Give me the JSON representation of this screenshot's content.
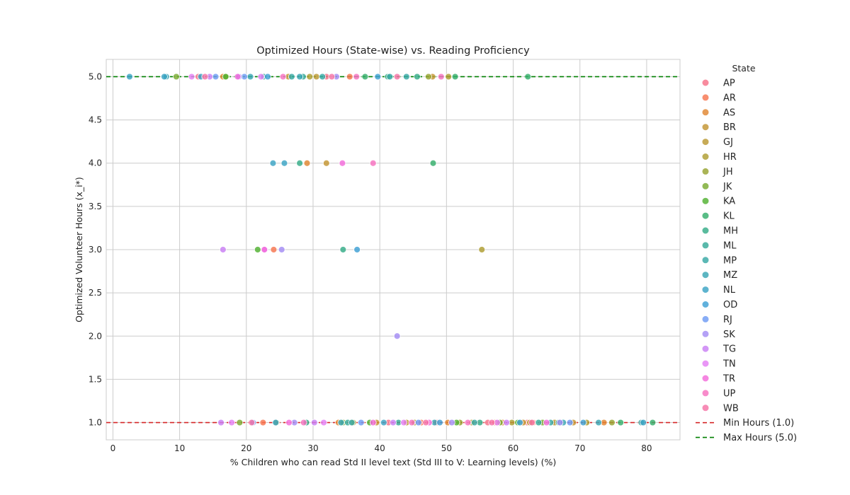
{
  "chart_data": {
    "type": "scatter",
    "title": "Optimized Hours (State-wise) vs. Reading Proficiency",
    "xlabel": "% Children who can read Std II level text (Std III to V: Learning levels) (%)",
    "ylabel": "Optimized Volunteer Hours (x_i*)",
    "xlim": [
      -1,
      85
    ],
    "ylim": [
      0.8,
      5.2
    ],
    "xticks": [
      "0",
      "10",
      "20",
      "30",
      "40",
      "50",
      "60",
      "70",
      "80"
    ],
    "yticks": [
      "1.0",
      "1.5",
      "2.0",
      "2.5",
      "3.0",
      "3.5",
      "4.0",
      "4.5",
      "5.0"
    ],
    "grid": true,
    "legend": {
      "title": "State",
      "position": "outside-right"
    },
    "series": [
      {
        "name": "AP",
        "color": "#f77189",
        "points": [
          [
            32.0,
            5
          ],
          [
            12.8,
            5
          ],
          [
            48.5,
            1
          ],
          [
            56.2,
            1
          ],
          [
            62.1,
            1
          ],
          [
            41.3,
            1
          ]
        ]
      },
      {
        "name": "AR",
        "color": "#f7754f",
        "points": [
          [
            24.1,
            3
          ],
          [
            35.5,
            5
          ],
          [
            22.5,
            1
          ],
          [
            57.3,
            1
          ],
          [
            63.0,
            1
          ],
          [
            46.2,
            1
          ]
        ]
      },
      {
        "name": "AS",
        "color": "#e18631",
        "points": [
          [
            29.1,
            4
          ],
          [
            16.5,
            5
          ],
          [
            33.8,
            1
          ],
          [
            50.2,
            1
          ],
          [
            58.4,
            1
          ],
          [
            73.6,
            1
          ]
        ]
      },
      {
        "name": "BR",
        "color": "#c39532",
        "points": [
          [
            32.0,
            4
          ],
          [
            26.3,
            5
          ],
          [
            47.9,
            5
          ],
          [
            39.5,
            1
          ],
          [
            61.5,
            1
          ],
          [
            69.0,
            1
          ]
        ]
      },
      {
        "name": "GJ",
        "color": "#bb9832",
        "points": [
          [
            30.5,
            5
          ],
          [
            44.0,
            1
          ],
          [
            53.8,
            1
          ],
          [
            62.5,
            1
          ],
          [
            66.2,
            1
          ]
        ]
      },
      {
        "name": "HR",
        "color": "#ae9d31",
        "points": [
          [
            55.3,
            3
          ],
          [
            29.5,
            5
          ],
          [
            50.3,
            5
          ],
          [
            45.2,
            1
          ],
          [
            59.8,
            1
          ],
          [
            71.0,
            1
          ]
        ]
      },
      {
        "name": "JH",
        "color": "#97a431",
        "points": [
          [
            17.0,
            5
          ],
          [
            47.3,
            5
          ],
          [
            24.5,
            1
          ],
          [
            36.0,
            1
          ],
          [
            52.0,
            1
          ],
          [
            74.8,
            1
          ]
        ]
      },
      {
        "name": "JK",
        "color": "#7aab31",
        "points": [
          [
            9.5,
            5
          ],
          [
            19.0,
            1
          ],
          [
            34.5,
            1
          ],
          [
            58.0,
            1
          ],
          [
            64.4,
            1
          ]
        ]
      },
      {
        "name": "KA",
        "color": "#50b131",
        "points": [
          [
            21.7,
            3
          ],
          [
            16.9,
            5
          ],
          [
            38.5,
            1
          ],
          [
            51.5,
            1
          ],
          [
            60.7,
            1
          ]
        ]
      },
      {
        "name": "KL",
        "color": "#34af6b",
        "points": [
          [
            62.2,
            5
          ],
          [
            48.0,
            4
          ],
          [
            51.3,
            5
          ],
          [
            37.8,
            5
          ],
          [
            76.1,
            1
          ],
          [
            80.9,
            1
          ]
        ]
      },
      {
        "name": "MH",
        "color": "#35ac88",
        "points": [
          [
            34.5,
            3
          ],
          [
            28.0,
            4
          ],
          [
            45.6,
            5
          ],
          [
            41.2,
            5
          ],
          [
            29.0,
            1
          ],
          [
            55.0,
            1
          ],
          [
            66.8,
            1
          ]
        ]
      },
      {
        "name": "ML",
        "color": "#36aa98",
        "points": [
          [
            22.6,
            5
          ],
          [
            28.5,
            5
          ],
          [
            35.2,
            1
          ],
          [
            42.8,
            1
          ],
          [
            63.8,
            1
          ]
        ]
      },
      {
        "name": "MP",
        "color": "#37a8a5",
        "points": [
          [
            26.8,
            5
          ],
          [
            31.4,
            5
          ],
          [
            41.5,
            5
          ],
          [
            44.0,
            5
          ],
          [
            35.8,
            1
          ],
          [
            54.2,
            1
          ],
          [
            65.6,
            1
          ],
          [
            79.2,
            1
          ]
        ]
      },
      {
        "name": "MZ",
        "color": "#39a6b5",
        "points": [
          [
            8.0,
            5
          ],
          [
            20.6,
            5
          ],
          [
            28.0,
            5
          ],
          [
            34.2,
            1
          ],
          [
            48.2,
            1
          ],
          [
            67.5,
            1
          ],
          [
            72.8,
            1
          ]
        ]
      },
      {
        "name": "NL",
        "color": "#3ba3c4",
        "points": [
          [
            24.0,
            4
          ],
          [
            25.7,
            4
          ],
          [
            2.5,
            5
          ],
          [
            7.7,
            5
          ],
          [
            13.2,
            5
          ],
          [
            24.4,
            1
          ],
          [
            40.6,
            1
          ],
          [
            79.5,
            1
          ]
        ]
      },
      {
        "name": "OD",
        "color": "#3ea0d4",
        "points": [
          [
            36.6,
            3
          ],
          [
            23.2,
            5
          ],
          [
            39.7,
            5
          ],
          [
            49.0,
            1
          ],
          [
            61.0,
            1
          ],
          [
            70.5,
            1
          ]
        ]
      },
      {
        "name": "RJ",
        "color": "#6e9bf4",
        "points": [
          [
            15.4,
            5
          ],
          [
            19.7,
            5
          ],
          [
            21.0,
            1
          ],
          [
            37.2,
            1
          ],
          [
            45.8,
            1
          ],
          [
            68.5,
            1
          ]
        ]
      },
      {
        "name": "SK",
        "color": "#a48cf4",
        "points": [
          [
            42.6,
            2
          ],
          [
            25.3,
            3
          ],
          [
            18.9,
            5
          ],
          [
            33.5,
            5
          ],
          [
            27.2,
            1
          ],
          [
            50.8,
            1
          ],
          [
            67.0,
            1
          ]
        ]
      },
      {
        "name": "TG",
        "color": "#c97ff4",
        "points": [
          [
            16.5,
            3
          ],
          [
            14.5,
            5
          ],
          [
            16.2,
            1
          ],
          [
            30.2,
            1
          ],
          [
            42.0,
            1
          ],
          [
            59.0,
            1
          ]
        ]
      },
      {
        "name": "TN",
        "color": "#e47ff4",
        "points": [
          [
            22.8,
            3
          ],
          [
            11.8,
            5
          ],
          [
            22.2,
            5
          ],
          [
            17.8,
            1
          ],
          [
            31.6,
            1
          ],
          [
            43.6,
            1
          ],
          [
            57.6,
            1
          ]
        ]
      },
      {
        "name": "TR",
        "color": "#f36bdb",
        "points": [
          [
            22.7,
            3
          ],
          [
            34.4,
            4
          ],
          [
            18.7,
            5
          ],
          [
            26.4,
            1
          ],
          [
            39.0,
            1
          ],
          [
            47.4,
            1
          ],
          [
            65.0,
            1
          ]
        ]
      },
      {
        "name": "UP",
        "color": "#f671bf",
        "points": [
          [
            39.0,
            4
          ],
          [
            25.5,
            5
          ],
          [
            36.5,
            5
          ],
          [
            49.2,
            5
          ],
          [
            28.6,
            1
          ],
          [
            44.8,
            1
          ],
          [
            53.2,
            1
          ]
        ]
      },
      {
        "name": "WB",
        "color": "#f573a6",
        "points": [
          [
            13.8,
            5
          ],
          [
            32.8,
            5
          ],
          [
            42.6,
            5
          ],
          [
            20.8,
            1
          ],
          [
            46.9,
            1
          ],
          [
            56.8,
            1
          ],
          [
            62.8,
            1
          ]
        ]
      }
    ],
    "reference_lines": [
      {
        "name": "Min Hours (1.0)",
        "y": 1.0,
        "color": "#d62728",
        "style": "dashed"
      },
      {
        "name": "Max Hours (5.0)",
        "y": 5.0,
        "color": "#008000",
        "style": "dashed"
      }
    ]
  }
}
